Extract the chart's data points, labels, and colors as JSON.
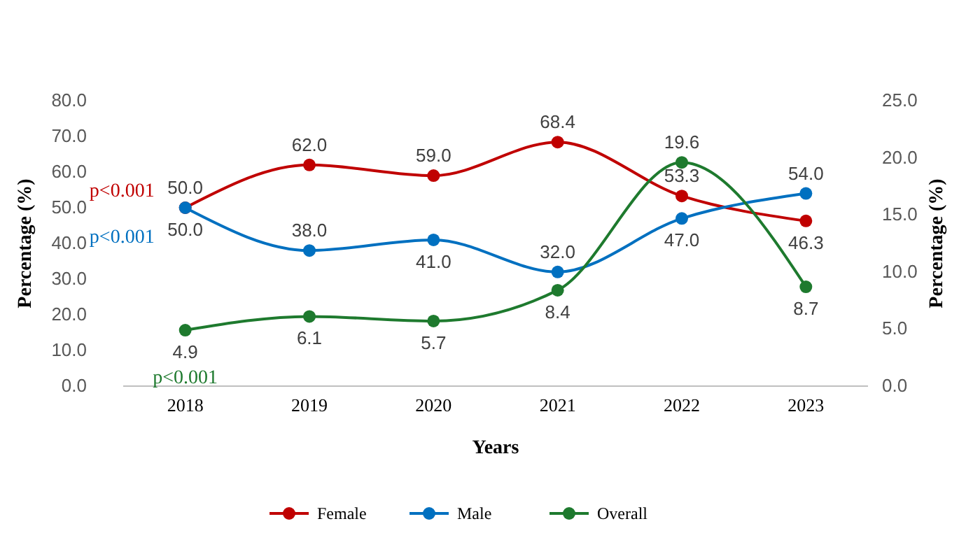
{
  "chart_data": {
    "type": "line",
    "xlabel": "Years",
    "ylabel": "Percentage (%)",
    "y2label": "Percentage (%)",
    "categories": [
      "2018",
      "2019",
      "2020",
      "2021",
      "2022",
      "2023"
    ],
    "series": [
      {
        "name": "Female",
        "color": "#c00000",
        "values": [
          50.0,
          62.0,
          59.0,
          68.4,
          53.3,
          46.3
        ],
        "value_labels": [
          "50.0",
          "62.0",
          "59.0",
          "68.4",
          "53.3",
          "46.3"
        ]
      },
      {
        "name": "Male",
        "color": "#0070c0",
        "values": [
          50.0,
          38.0,
          41.0,
          32.0,
          47.0,
          54.0
        ],
        "value_labels": [
          "50.0",
          "38.0",
          "41.0",
          "32.0",
          "47.0",
          "54.0"
        ]
      },
      {
        "name": "Overall",
        "color": "#1e7a2e",
        "axis": "y2",
        "values": [
          4.9,
          6.1,
          5.7,
          8.4,
          19.6,
          8.7
        ],
        "value_labels": [
          "4.9",
          "6.1",
          "5.7",
          "8.4",
          "19.6",
          "8.7"
        ]
      }
    ],
    "ylim": [
      0,
      80
    ],
    "yticks": [
      {
        "value": 0,
        "label": "0.0"
      },
      {
        "value": 10,
        "label": "10.0"
      },
      {
        "value": 20,
        "label": "20.0"
      },
      {
        "value": 30,
        "label": "30.0"
      },
      {
        "value": 40,
        "label": "40.0"
      },
      {
        "value": 50,
        "label": "50.0"
      },
      {
        "value": 60,
        "label": "60.0"
      },
      {
        "value": 70,
        "label": "70.0"
      },
      {
        "value": 80,
        "label": "80.0"
      }
    ],
    "y2lim": [
      0,
      25
    ],
    "y2ticks": [
      {
        "value": 0,
        "label": "0.0"
      },
      {
        "value": 5,
        "label": "5.0"
      },
      {
        "value": 10,
        "label": "10.0"
      },
      {
        "value": 15,
        "label": "15.0"
      },
      {
        "value": 20,
        "label": "20.0"
      },
      {
        "value": 25,
        "label": "25.0"
      }
    ],
    "annotations": [
      "p<0.001",
      "p<0.001",
      "p<0.001"
    ],
    "legend": "bottom",
    "marker": "circle",
    "line_style": "solid",
    "grid": false
  }
}
